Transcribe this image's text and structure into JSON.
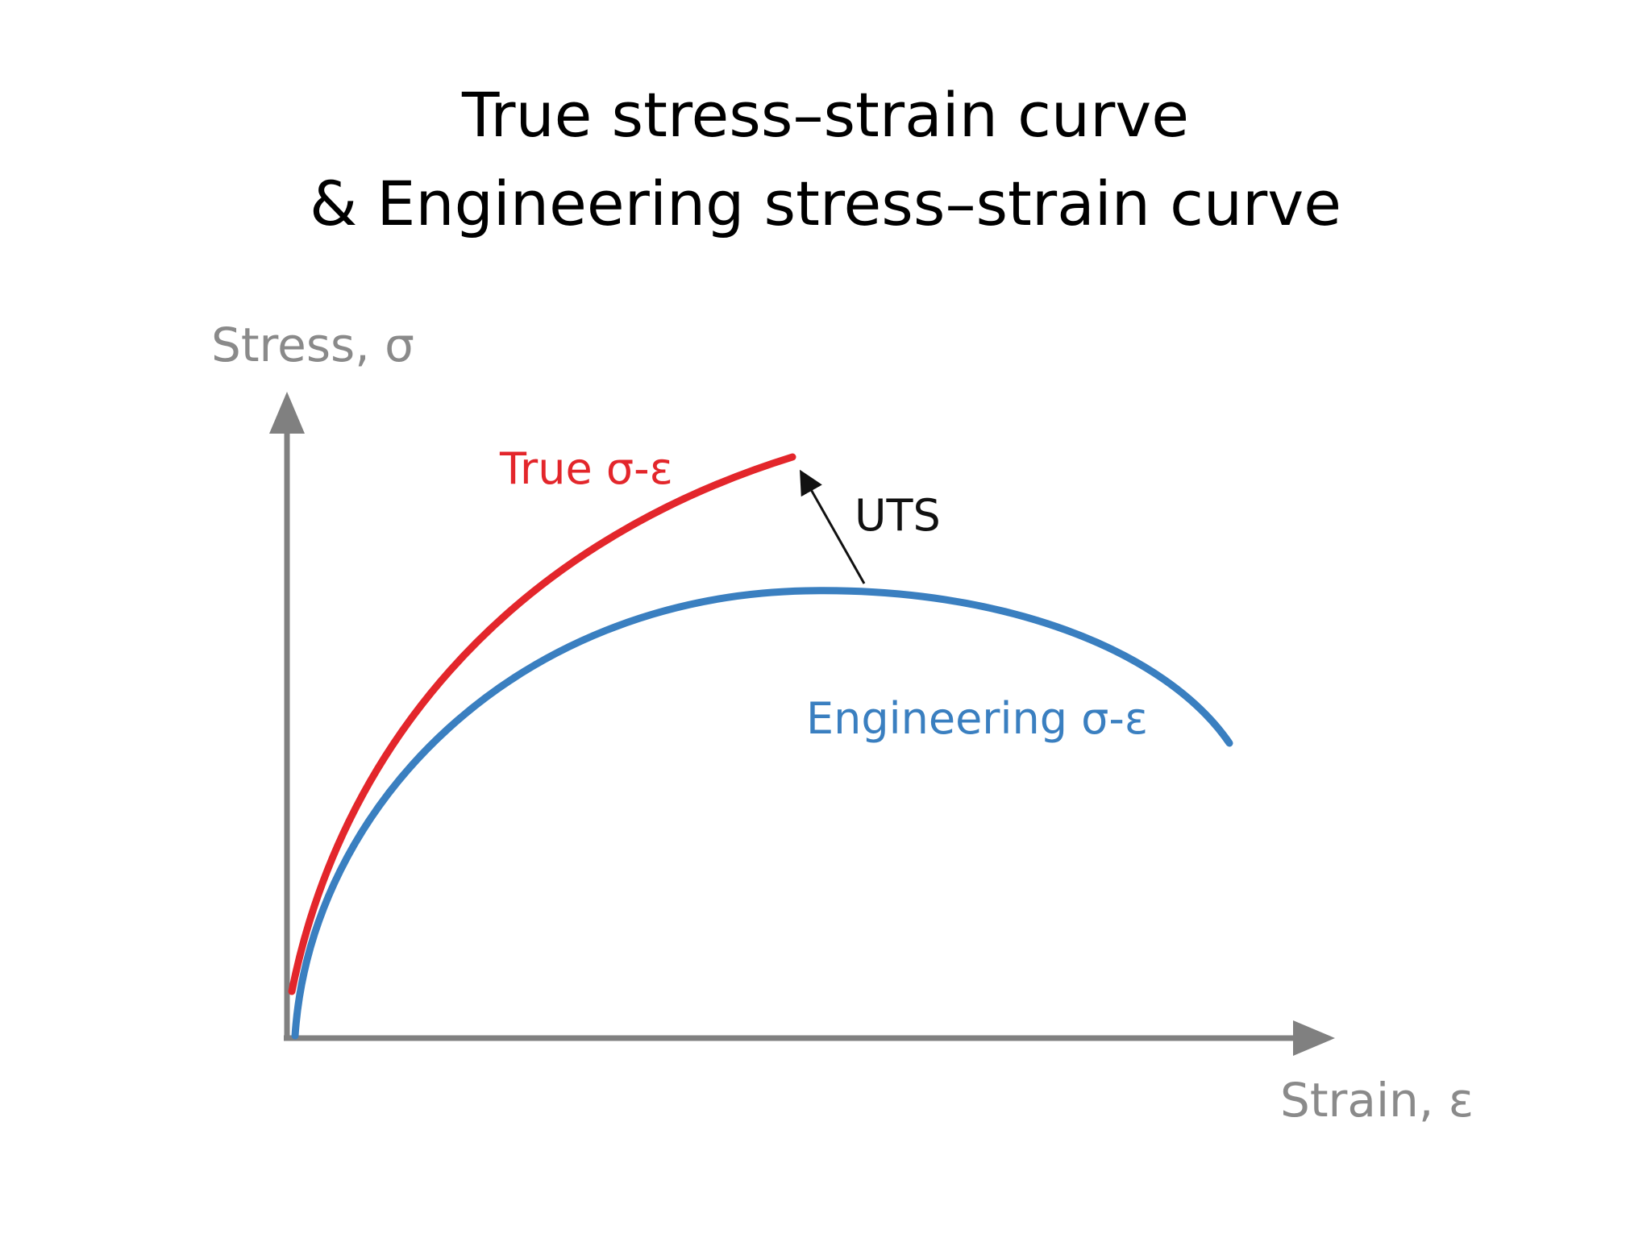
{
  "slide": {
    "title_line_1": "True stress–strain curve",
    "title_line_2": "& Engineering stress–strain curve"
  },
  "diagram": {
    "y_axis_label": "Stress, σ",
    "x_axis_label": "Strain, ε",
    "true_curve_label": "True σ-ε",
    "engineering_curve_label": "Engineering σ-ε",
    "uts_label": "UTS",
    "colors": {
      "axis": "#808080",
      "axis_label": "#8a8a8a",
      "true_curve": "#e3262b",
      "engineering_curve": "#3a7fc0",
      "uts_arrow": "#111111"
    }
  }
}
